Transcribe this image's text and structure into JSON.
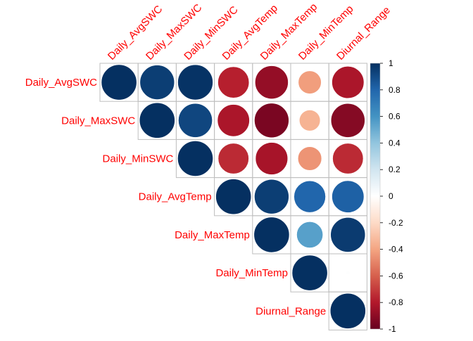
{
  "chart_data": {
    "type": "heatmap",
    "variables": [
      "Daily_AvgSWC",
      "Daily_MaxSWC",
      "Daily_MinSWC",
      "Daily_AvgTemp",
      "Daily_MaxTemp",
      "Daily_MinTemp",
      "Diurnal_Range"
    ],
    "layout": "upper-triangle",
    "method": "circle",
    "correlations": [
      [
        1.0,
        0.95,
        0.99,
        -0.78,
        -0.88,
        -0.42,
        -0.82
      ],
      [
        0.95,
        1.0,
        0.92,
        -0.82,
        -0.95,
        -0.35,
        -0.92
      ],
      [
        0.99,
        0.92,
        1.0,
        -0.75,
        -0.83,
        -0.45,
        -0.75
      ],
      [
        -0.78,
        -0.82,
        -0.75,
        1.0,
        0.95,
        0.8,
        0.82
      ],
      [
        -0.88,
        -0.95,
        -0.83,
        0.95,
        1.0,
        0.55,
        0.96
      ],
      [
        -0.42,
        -0.35,
        -0.45,
        0.8,
        0.55,
        1.0,
        0.01
      ],
      [
        -0.82,
        -0.92,
        -0.75,
        0.82,
        0.96,
        0.01,
        1.0
      ]
    ],
    "colorbar": {
      "range": [
        -1,
        1
      ],
      "ticks": [
        "1",
        "0.8",
        "0.6",
        "0.4",
        "0.2",
        "0",
        "-0.2",
        "-0.4",
        "-0.6",
        "-0.8",
        "-1"
      ],
      "position": "right"
    },
    "label_color": "#ff0000",
    "palette": [
      "#67001f",
      "#b2182b",
      "#d6604d",
      "#f4a582",
      "#fddbc7",
      "#ffffff",
      "#d1e5f0",
      "#92c5de",
      "#4393c3",
      "#2166ac",
      "#053061"
    ]
  }
}
